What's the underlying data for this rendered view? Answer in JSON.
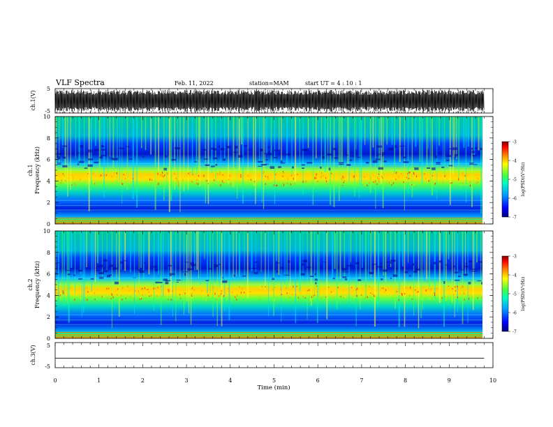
{
  "header": {
    "title": "VLF Spectra",
    "date": "Feb. 11, 2022",
    "station": "station=MAM",
    "start": "start UT =  4 : 10 : 1"
  },
  "chart_data": [
    {
      "type": "line",
      "panel": "waveform ch.1",
      "ylabel": "ch.1(V)",
      "ylim": [
        -5,
        5
      ],
      "yticks": [
        "5",
        "-5"
      ],
      "description_values": {
        "amplitude_V": 4.5,
        "spike_min_V": -4.2
      }
    },
    {
      "type": "heatmap",
      "panel": "spectrogram ch.1",
      "ylabel_top": "ch.1",
      "ylabel": "Frequency (kHz)",
      "ylim": [
        0,
        10
      ],
      "yticks": [
        "0",
        "2",
        "4",
        "6",
        "8",
        "10"
      ],
      "band_center_khz": 4.3,
      "colorbar": {
        "label": "log(PSD)(V²/Hz)",
        "range": [
          -7,
          -3
        ],
        "ticks": [
          "-3",
          "-4",
          "-5",
          "-6",
          "-7"
        ]
      }
    },
    {
      "type": "heatmap",
      "panel": "spectrogram ch.2",
      "ylabel_top": "ch.2",
      "ylabel": "Frequency (kHz)",
      "ylim": [
        0,
        10
      ],
      "yticks": [
        "0",
        "2",
        "4",
        "6",
        "8",
        "10"
      ],
      "band_center_khz": 4.3,
      "colorbar": {
        "label": "log(PSD)(V²/Hz)",
        "range": [
          -7,
          -3
        ],
        "ticks": [
          "-3",
          "-4",
          "-5",
          "-6",
          "-7"
        ]
      }
    },
    {
      "type": "line",
      "panel": "waveform ch.3",
      "ylabel": "ch.3(V)",
      "ylim": [
        -5,
        5
      ],
      "yticks": [
        "5",
        "-5"
      ],
      "values": [
        -1.2,
        -1.2
      ]
    }
  ],
  "xaxis": {
    "label": "Time (min)",
    "ticks": [
      "0",
      "1",
      "2",
      "3",
      "4",
      "5",
      "6",
      "7",
      "8",
      "9",
      "10"
    ],
    "xlim": [
      0,
      10
    ],
    "data_end_min": 9.8
  },
  "colors": {
    "colormap": [
      "#000080",
      "#0000ff",
      "#00a0ff",
      "#00ffc0",
      "#40ff40",
      "#ffff00",
      "#ff8000",
      "#ff0000",
      "#800000"
    ]
  }
}
